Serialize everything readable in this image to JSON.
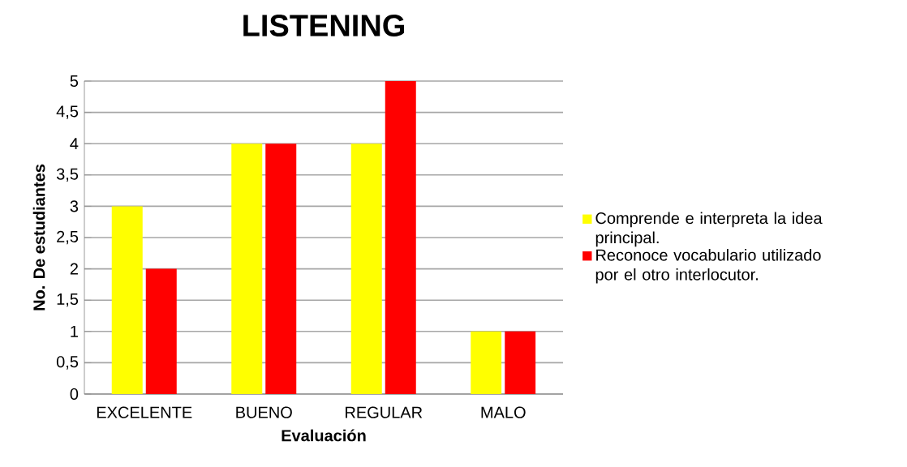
{
  "chart_data": {
    "type": "bar",
    "title": "LISTENING",
    "xlabel": "Evaluación",
    "ylabel": "No. De estudiantes",
    "categories": [
      "EXCELENTE",
      "BUENO",
      "REGULAR",
      "MALO"
    ],
    "series": [
      {
        "name": "Comprende e interpreta la idea principal.",
        "color": "#ffff00",
        "values": [
          3,
          4,
          4,
          1
        ]
      },
      {
        "name": "Reconoce vocabulario utilizado por el otro interlocutor.",
        "color": "#ff0000",
        "values": [
          2,
          4,
          5,
          1
        ]
      }
    ],
    "ylim": [
      0,
      5
    ],
    "yticks": [
      0,
      {
        "value": 0.5,
        "label": "0,5"
      },
      1,
      {
        "value": 1.5,
        "label": "1,5"
      },
      2,
      {
        "value": 2.5,
        "label": "2,5"
      },
      3,
      {
        "value": 3.5,
        "label": "3,5"
      },
      4,
      {
        "value": 4.5,
        "label": "4,5"
      },
      5
    ],
    "grid": "y",
    "legend": "right"
  }
}
